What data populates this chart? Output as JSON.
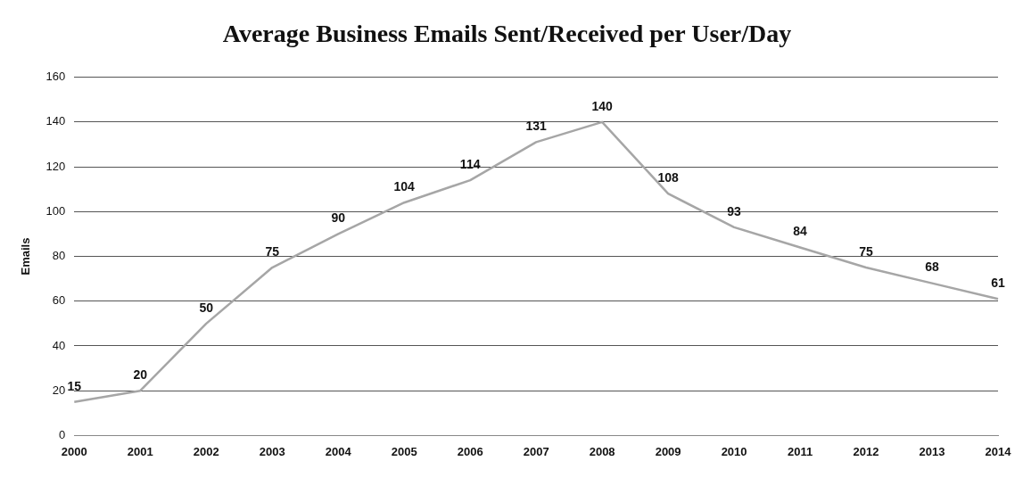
{
  "chart_data": {
    "type": "line",
    "title": "Average Business Emails Sent/Received per User/Day",
    "ylabel": "Emails",
    "categories": [
      "2000",
      "2001",
      "2002",
      "2003",
      "2004",
      "2005",
      "2006",
      "2007",
      "2008",
      "2009",
      "2010",
      "2011",
      "2012",
      "2013",
      "2014"
    ],
    "series": [
      {
        "color": "#a6a6a6",
        "values": [
          15,
          20,
          50,
          75,
          90,
          104,
          114,
          131,
          140,
          108,
          93,
          84,
          75,
          68,
          61
        ]
      }
    ],
    "ylim": [
      0,
      160
    ],
    "yticks": [
      0,
      20,
      40,
      60,
      80,
      100,
      120,
      140,
      160
    ],
    "grid": "y",
    "legend": false,
    "marker": "none",
    "line_style": "solid",
    "data_labels": true
  }
}
